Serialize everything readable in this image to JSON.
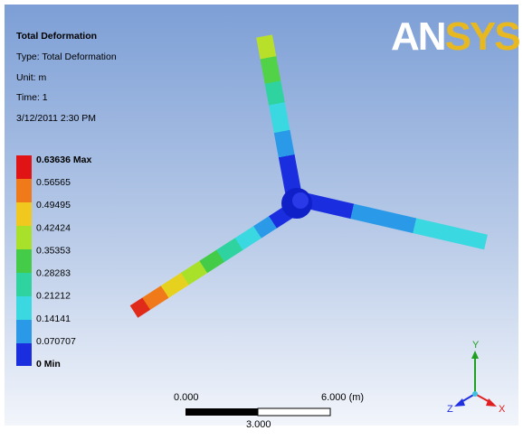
{
  "header": {
    "title": "Total Deformation",
    "type": "Type: Total Deformation",
    "unit": "Unit: m",
    "time": "Time: 1",
    "date": "3/12/2011 2:30 PM"
  },
  "legend": {
    "labels": [
      "0.63636 Max",
      "0.56565",
      "0.49495",
      "0.42424",
      "0.35353",
      "0.28283",
      "0.21212",
      "0.14141",
      "0.070707",
      "0 Min"
    ]
  },
  "logo": [
    "AN",
    "SYS"
  ],
  "scale_bar": {
    "left": "0.000",
    "right": "6.000 (m)",
    "middle": "3.000"
  },
  "triad": {
    "y": "Y",
    "z": "Z",
    "x": "X"
  }
}
